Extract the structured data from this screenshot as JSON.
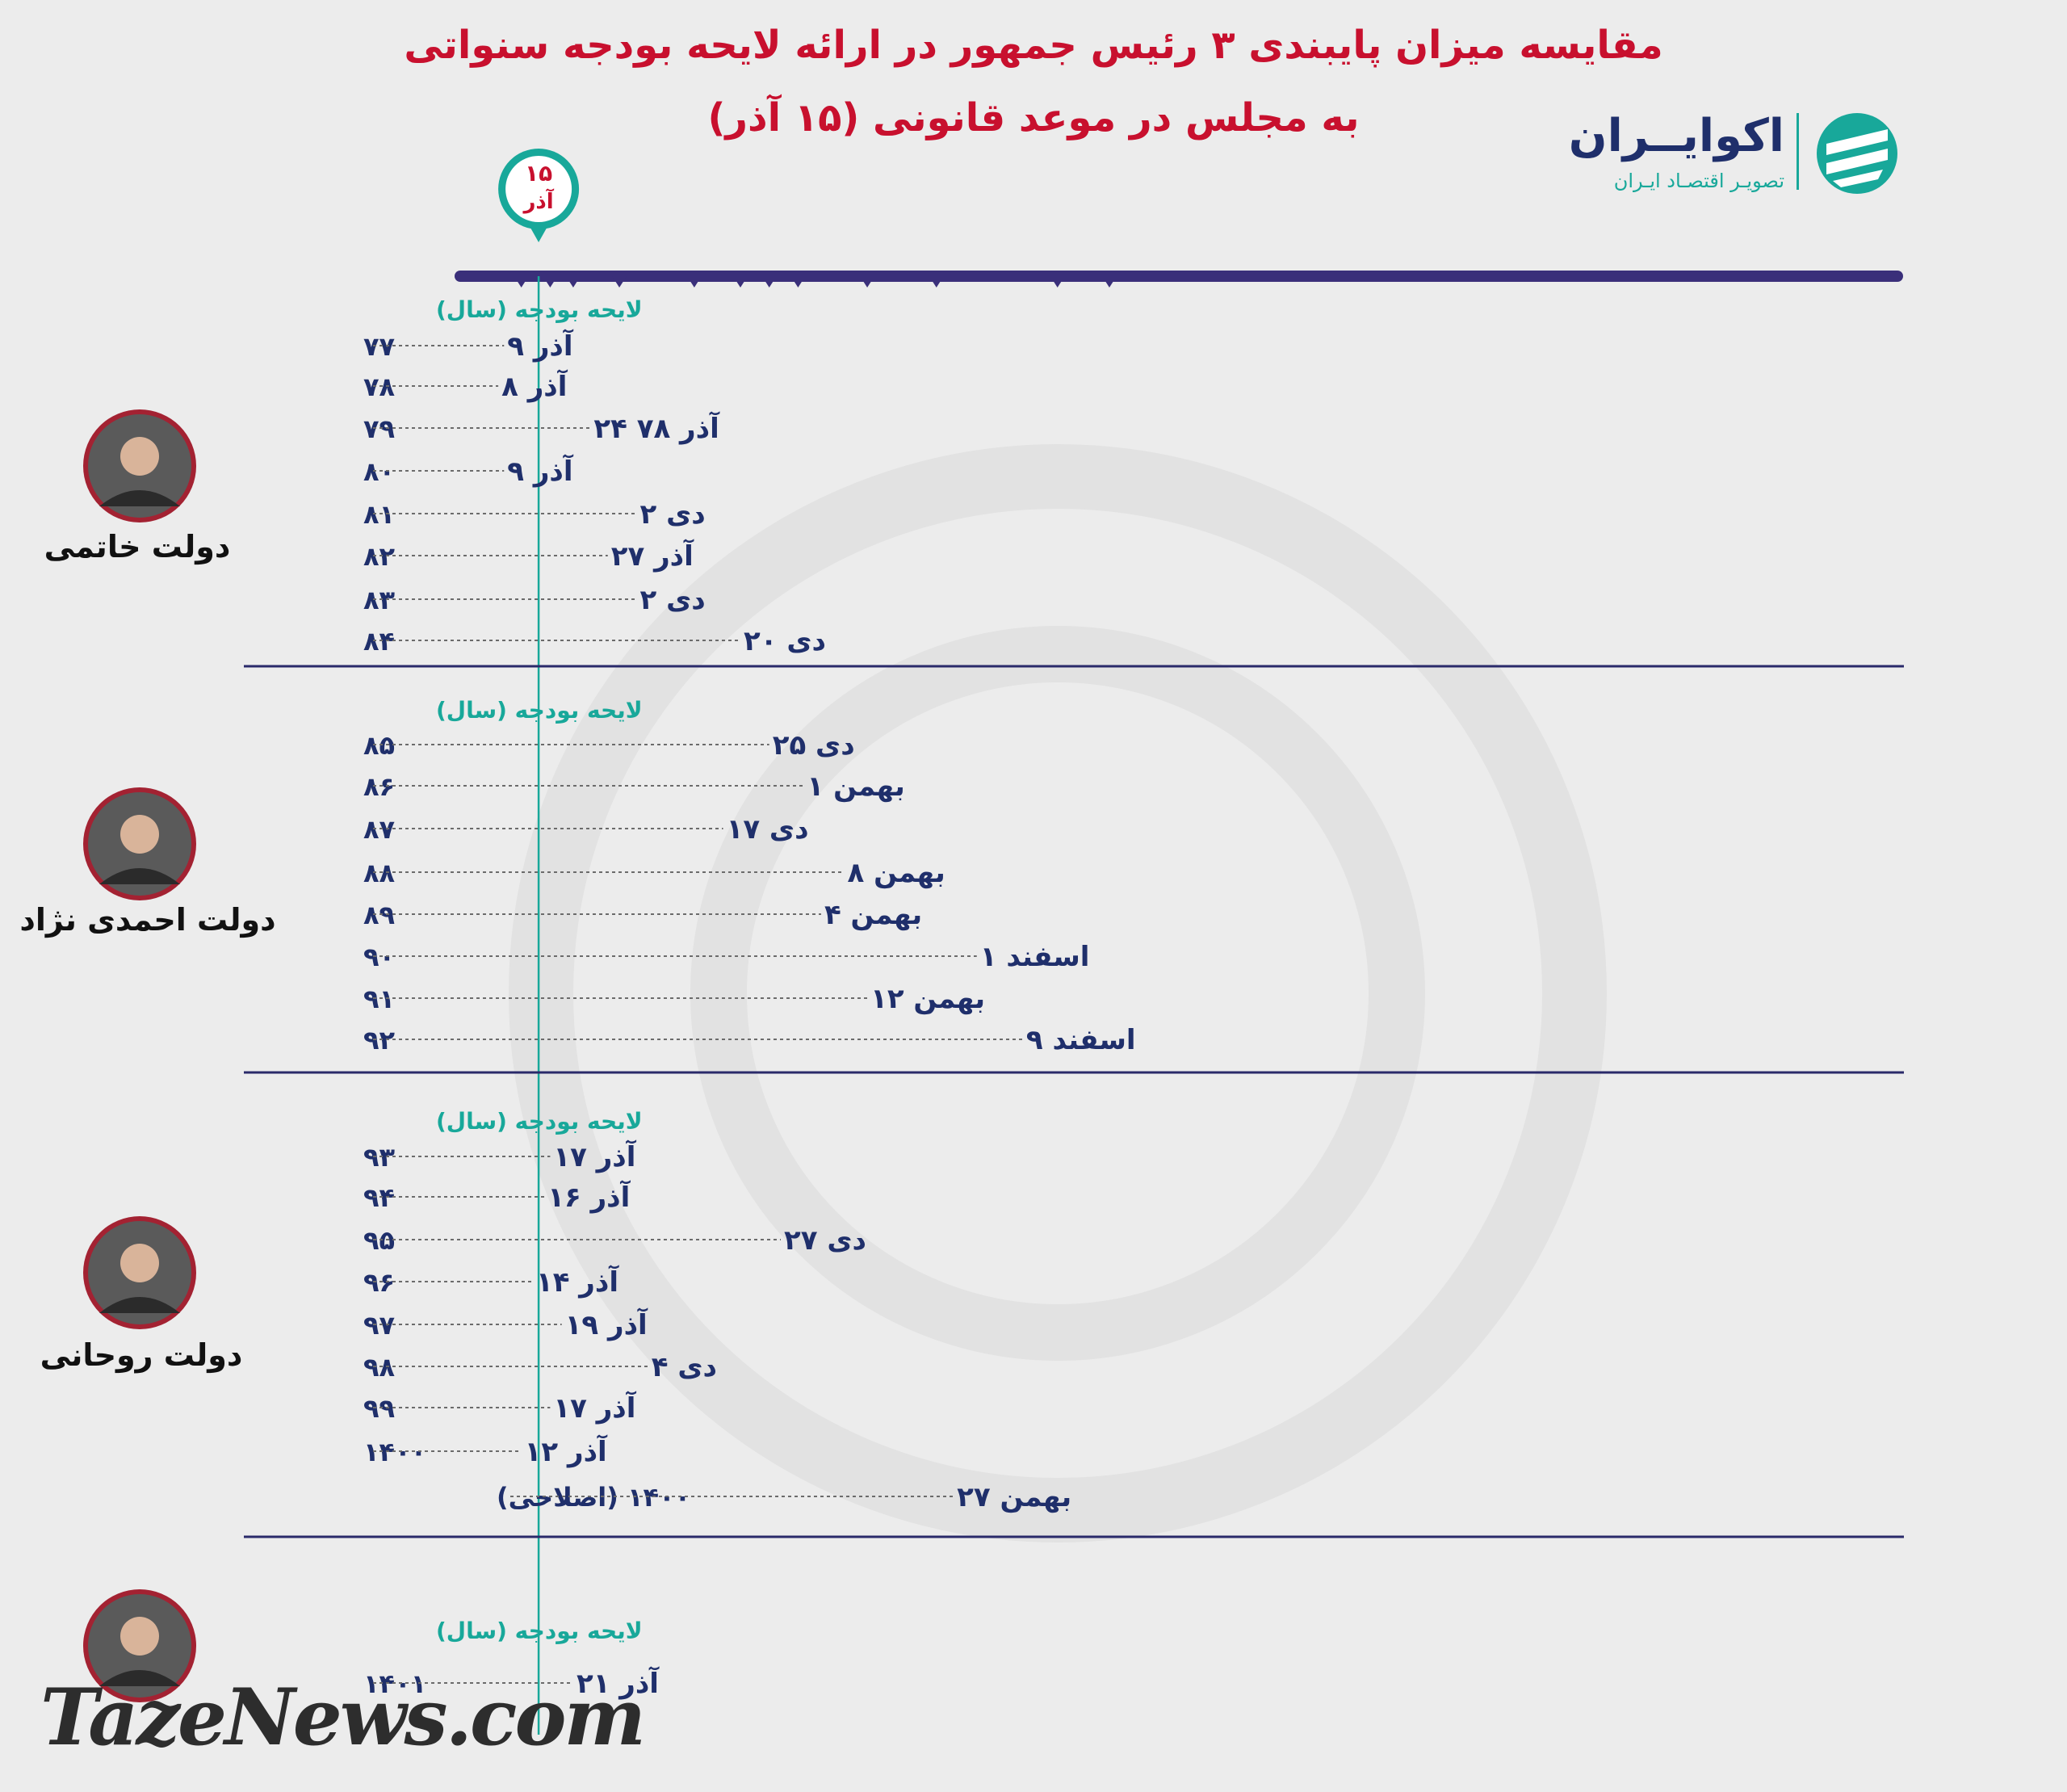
{
  "header": {
    "title_line1": "مقایسه میزان پایبندی ۳ رئیس جمهور در ارائه لایحه بودجه سنواتی",
    "title_line2": "به مجلس در موعد قانونی (۱۵ آذر)"
  },
  "brand": {
    "name": "اکوایــران",
    "tagline": "تصویـر اقتصـاد ایـران"
  },
  "watermark": "TazeNews.com",
  "colors": {
    "title": "#c8102e",
    "axis": "#3a2f7a",
    "guide_line": "#18a89a",
    "label": "#1f2f6b",
    "caption": "#18a89a",
    "divider": "#2a2a6a"
  },
  "icons": [
    "deadline-pin-icon",
    "ecoiran-logo-icon"
  ],
  "chart_data": {
    "type": "timeline",
    "deadline": {
      "label_line1": "۱۵",
      "label_line2": "آذر",
      "month": "azar",
      "day": 15
    },
    "axis_range": {
      "start": {
        "month": "azar",
        "day": 0
      },
      "end": {
        "month": "esfand",
        "day": 10
      }
    },
    "column_caption": "لایحه بودجه (سال)",
    "groups": [
      {
        "name": "دولت خاتمی",
        "rows": [
          {
            "year": "۷۷",
            "date_label": "۹ آذر",
            "month": "azar",
            "day": 9
          },
          {
            "year": "۷۸",
            "date_label": "۸ آذر",
            "month": "azar",
            "day": 8
          },
          {
            "year": "۷۹",
            "date_label": "۲۴ آذر ۷۸",
            "month": "azar",
            "day": 24
          },
          {
            "year": "۸۰",
            "date_label": "۹ آذر",
            "month": "azar",
            "day": 9
          },
          {
            "year": "۸۱",
            "date_label": "۲ دی",
            "month": "dey",
            "day": 2
          },
          {
            "year": "۸۲",
            "date_label": "۲۷ آذر",
            "month": "azar",
            "day": 27
          },
          {
            "year": "۸۳",
            "date_label": "۲ دی",
            "month": "dey",
            "day": 2
          },
          {
            "year": "۸۴",
            "date_label": "۲۰ دی",
            "month": "dey",
            "day": 20
          }
        ]
      },
      {
        "name": "دولت احمدی نژاد",
        "rows": [
          {
            "year": "۸۵",
            "date_label": "۲۵ دی",
            "month": "dey",
            "day": 25
          },
          {
            "year": "۸۶",
            "date_label": "۱ بهمن",
            "month": "bahman",
            "day": 1
          },
          {
            "year": "۸۷",
            "date_label": "۱۷ دی",
            "month": "dey",
            "day": 17
          },
          {
            "year": "۸۸",
            "date_label": "۸ بهمن",
            "month": "bahman",
            "day": 8
          },
          {
            "year": "۸۹",
            "date_label": "۴ بهمن",
            "month": "bahman",
            "day": 4
          },
          {
            "year": "۹۰",
            "date_label": "۱ اسفند",
            "month": "esfand",
            "day": 1
          },
          {
            "year": "۹۱",
            "date_label": "۱۲ بهمن",
            "month": "bahman",
            "day": 12
          },
          {
            "year": "۹۲",
            "date_label": "۹ اسفند",
            "month": "esfand",
            "day": 9
          }
        ]
      },
      {
        "name": "دولت روحانی",
        "rows": [
          {
            "year": "۹۳",
            "date_label": "۱۷ آذر",
            "month": "azar",
            "day": 17
          },
          {
            "year": "۹۴",
            "date_label": "۱۶ آذر",
            "month": "azar",
            "day": 16
          },
          {
            "year": "۹۵",
            "date_label": "۲۷ دی",
            "month": "dey",
            "day": 27
          },
          {
            "year": "۹۶",
            "date_label": "۱۴ آذر",
            "month": "azar",
            "day": 14
          },
          {
            "year": "۹۷",
            "date_label": "۱۹ آذر",
            "month": "azar",
            "day": 19
          },
          {
            "year": "۹۸",
            "date_label": "۴ دی",
            "month": "dey",
            "day": 4
          },
          {
            "year": "۹۹",
            "date_label": "۱۷ آذر",
            "month": "azar",
            "day": 17
          },
          {
            "year": "۱۴۰۰",
            "date_label": "۱۲ آذر",
            "month": "azar",
            "day": 12
          },
          {
            "year": "۱۴۰۰ (اصلاحی)",
            "date_label": "۲۷ بهمن",
            "month": "bahman",
            "day": 27
          }
        ]
      },
      {
        "name": "",
        "rows": [
          {
            "year": "۱۴۰۱",
            "date_label": "۲۱ آذر",
            "month": "azar",
            "day": 21
          }
        ]
      }
    ]
  }
}
